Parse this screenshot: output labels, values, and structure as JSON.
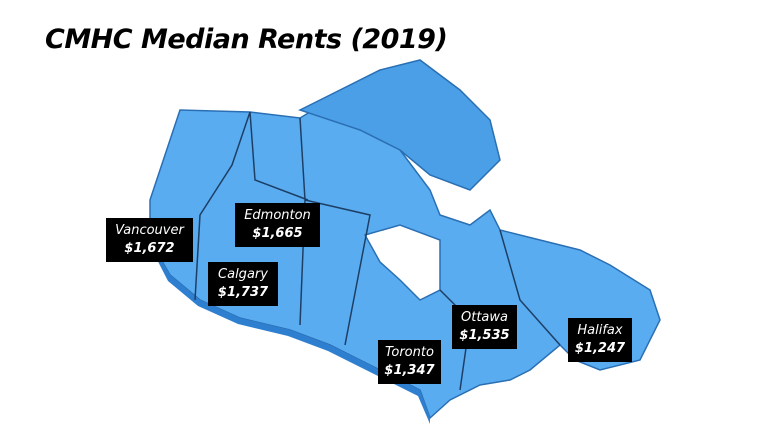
{
  "title": "CMHC Median Rents (2019)",
  "cities": [
    {
      "name": "Vancouver",
      "rent": "$1,672"
    },
    {
      "name": "Edmonton",
      "rent": "$1,665"
    },
    {
      "name": "Calgary",
      "rent": "$1,737"
    },
    {
      "name": "Toronto",
      "rent": "$1,347"
    },
    {
      "name": "Ottawa",
      "rent": "$1,535"
    },
    {
      "name": "Halifax",
      "rent": "$1,247"
    }
  ]
}
